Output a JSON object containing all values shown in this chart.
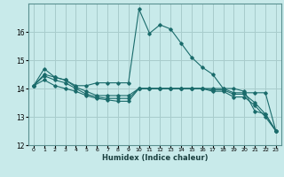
{
  "xlabel": "Humidex (Indice chaleur)",
  "ylabel": "",
  "bg_color": "#c8eaea",
  "grid_color": "#a8cccc",
  "line_color": "#1a6b6b",
  "xlim": [
    -0.5,
    23.5
  ],
  "ylim": [
    12,
    17
  ],
  "yticks": [
    12,
    13,
    14,
    15,
    16
  ],
  "xticks": [
    0,
    1,
    2,
    3,
    4,
    5,
    6,
    7,
    8,
    9,
    10,
    11,
    12,
    13,
    14,
    15,
    16,
    17,
    18,
    19,
    20,
    21,
    22,
    23
  ],
  "series": [
    {
      "x": [
        0,
        1,
        2,
        3,
        4,
        5,
        6,
        7,
        8,
        9,
        10,
        11,
        12,
        13,
        14,
        15,
        16,
        17,
        18,
        19,
        20,
        21,
        22,
        23
      ],
      "y": [
        14.1,
        14.7,
        14.4,
        14.3,
        14.1,
        14.1,
        14.2,
        14.2,
        14.2,
        14.2,
        16.8,
        15.95,
        16.25,
        16.1,
        15.6,
        15.1,
        14.75,
        14.5,
        14.0,
        14.0,
        13.9,
        13.2,
        13.1,
        12.5
      ]
    },
    {
      "x": [
        0,
        1,
        2,
        3,
        4,
        5,
        6,
        7,
        8,
        9,
        10,
        11,
        12,
        13,
        14,
        15,
        16,
        17,
        18,
        19,
        20,
        21,
        22,
        23
      ],
      "y": [
        14.1,
        14.5,
        14.4,
        14.3,
        14.05,
        13.9,
        13.75,
        13.75,
        13.75,
        13.75,
        14.0,
        14.0,
        14.0,
        14.0,
        14.0,
        14.0,
        14.0,
        14.0,
        14.0,
        13.85,
        13.85,
        13.85,
        13.85,
        12.5
      ]
    },
    {
      "x": [
        0,
        1,
        2,
        3,
        4,
        5,
        6,
        7,
        8,
        9,
        10,
        11,
        12,
        13,
        14,
        15,
        16,
        17,
        18,
        19,
        20,
        21,
        22,
        23
      ],
      "y": [
        14.1,
        14.45,
        14.3,
        14.2,
        14.0,
        13.8,
        13.7,
        13.65,
        13.65,
        13.65,
        14.0,
        14.0,
        14.0,
        14.0,
        14.0,
        14.0,
        14.0,
        13.95,
        13.95,
        13.8,
        13.8,
        13.5,
        13.1,
        12.5
      ]
    },
    {
      "x": [
        0,
        1,
        2,
        3,
        4,
        5,
        6,
        7,
        8,
        9,
        10,
        11,
        12,
        13,
        14,
        15,
        16,
        17,
        18,
        19,
        20,
        21,
        22,
        23
      ],
      "y": [
        14.1,
        14.3,
        14.1,
        14.0,
        13.9,
        13.75,
        13.65,
        13.6,
        13.55,
        13.55,
        14.0,
        14.0,
        14.0,
        14.0,
        14.0,
        14.0,
        14.0,
        13.9,
        13.9,
        13.7,
        13.7,
        13.4,
        13.0,
        12.5
      ]
    }
  ]
}
